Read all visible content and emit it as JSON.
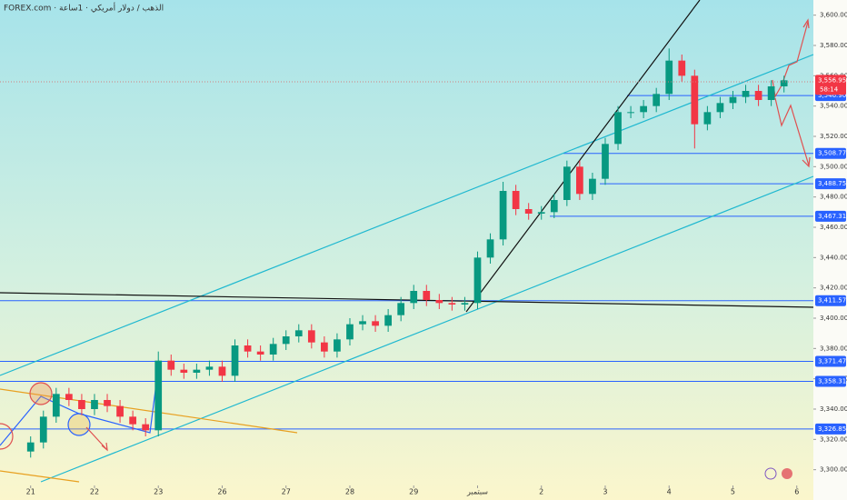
{
  "chart_data": {
    "type": "candlestick",
    "title": "FOREX.com · الذهب / دولار أمريكي · 1ساعة",
    "x": [
      0,
      0.2,
      0.4,
      0.6,
      0.8,
      1,
      1.2,
      1.4,
      1.6,
      1.8,
      2,
      2.2,
      2.4,
      2.6,
      2.8,
      3,
      3.2,
      3.4,
      3.6,
      3.8,
      4,
      4.2,
      4.4,
      4.6,
      4.8,
      5,
      5.2,
      5.4,
      5.6,
      5.8,
      6,
      6.2,
      6.4,
      6.6,
      6.8,
      7,
      7.2,
      7.4,
      7.6,
      7.8,
      8,
      8.2,
      8.4,
      8.6,
      8.8,
      9,
      9.2,
      9.4,
      9.6,
      9.8,
      10,
      10.2,
      10.4,
      10.6,
      10.8,
      11,
      11.2,
      11.4,
      11.6,
      11.8
    ],
    "open": [
      3312,
      3318,
      3335,
      3350,
      3346,
      3340,
      3346,
      3342,
      3335,
      3330,
      3326,
      3372,
      3366,
      3364,
      3366,
      3368,
      3362,
      3382,
      3378,
      3376,
      3383,
      3388,
      3392,
      3384,
      3378,
      3386,
      3396,
      3398,
      3395,
      3402,
      3410,
      3418,
      3412,
      3410,
      3409,
      3410,
      3440,
      3452,
      3484,
      3472,
      3469,
      3470,
      3478,
      3500,
      3482,
      3492,
      3515,
      3536,
      3536,
      3540,
      3548,
      3570,
      3560,
      3528,
      3536,
      3542,
      3546,
      3550,
      3544,
      3553
    ],
    "high": [
      3322,
      3339,
      3354,
      3354,
      3350,
      3350,
      3350,
      3346,
      3339,
      3334,
      3378,
      3376,
      3370,
      3370,
      3372,
      3372,
      3386,
      3386,
      3382,
      3387,
      3392,
      3396,
      3396,
      3388,
      3390,
      3400,
      3402,
      3402,
      3406,
      3414,
      3422,
      3422,
      3416,
      3414,
      3414,
      3444,
      3456,
      3490,
      3488,
      3476,
      3474,
      3482,
      3504,
      3504,
      3496,
      3519,
      3540,
      3540,
      3544,
      3552,
      3578,
      3574,
      3564,
      3540,
      3546,
      3550,
      3554,
      3554,
      3557,
      3560
    ],
    "low": [
      3308,
      3314,
      3331,
      3342,
      3336,
      3336,
      3338,
      3331,
      3326,
      3322,
      3322,
      3362,
      3360,
      3360,
      3362,
      3358,
      3358,
      3374,
      3372,
      3372,
      3379,
      3384,
      3380,
      3374,
      3374,
      3382,
      3392,
      3391,
      3391,
      3398,
      3406,
      3408,
      3406,
      3405,
      3405,
      3406,
      3436,
      3448,
      3468,
      3465,
      3465,
      3466,
      3474,
      3478,
      3478,
      3488,
      3511,
      3532,
      3532,
      3536,
      3544,
      3556,
      3512,
      3524,
      3532,
      3538,
      3542,
      3540,
      3540,
      3549
    ],
    "close": [
      3318,
      3335,
      3350,
      3346,
      3340,
      3346,
      3342,
      3335,
      3330,
      3326,
      3372,
      3366,
      3364,
      3366,
      3368,
      3362,
      3382,
      3378,
      3376,
      3383,
      3388,
      3392,
      3384,
      3378,
      3386,
      3396,
      3398,
      3395,
      3402,
      3410,
      3418,
      3412,
      3410,
      3409,
      3410,
      3440,
      3452,
      3484,
      3472,
      3469,
      3470,
      3478,
      3500,
      3482,
      3492,
      3515,
      3536,
      3536,
      3540,
      3548,
      3570,
      3560,
      3528,
      3536,
      3542,
      3546,
      3550,
      3544,
      3553,
      3557
    ],
    "up_color": "#089981",
    "down_color": "#f23645",
    "xlim": [
      -0.48,
      12.26
    ],
    "ylim": [
      3280,
      3610
    ],
    "xticks": [
      {
        "value": 0,
        "label": "21"
      },
      {
        "value": 1,
        "label": "22"
      },
      {
        "value": 2,
        "label": "23"
      },
      {
        "value": 3,
        "label": "26"
      },
      {
        "value": 4,
        "label": "27"
      },
      {
        "value": 5,
        "label": "28"
      },
      {
        "value": 6,
        "label": "29"
      },
      {
        "value": 7,
        "label": "سبتمبر"
      },
      {
        "value": 8,
        "label": "2"
      },
      {
        "value": 9,
        "label": "3"
      },
      {
        "value": 10,
        "label": "4"
      },
      {
        "value": 11,
        "label": "5"
      },
      {
        "value": 12,
        "label": "6"
      }
    ],
    "yticks": [
      {
        "value": 3600,
        "label": "3,600.00"
      },
      {
        "value": 3580,
        "label": "3,580.00"
      },
      {
        "value": 3560,
        "label": "3,560.00"
      },
      {
        "value": 3540,
        "label": "3,540.00"
      },
      {
        "value": 3520,
        "label": "3,520.00"
      },
      {
        "value": 3500,
        "label": "3,500.00"
      },
      {
        "value": 3480,
        "label": "3,480.00"
      },
      {
        "value": 3460,
        "label": "3,460.00"
      },
      {
        "value": 3440,
        "label": "3,440.00"
      },
      {
        "value": 3420,
        "label": "3,420.00"
      },
      {
        "value": 3400,
        "label": "3,400.00"
      },
      {
        "value": 3380,
        "label": "3,380.00"
      },
      {
        "value": 3360,
        "label": "3,360.00"
      },
      {
        "value": 3340,
        "label": "3,340.00"
      },
      {
        "value": 3320,
        "label": "3,320.00"
      },
      {
        "value": 3300,
        "label": "3,300.00"
      }
    ],
    "levels": [
      {
        "value": 3546.9,
        "label": "3,546.90"
      },
      {
        "value": 3508.77,
        "label": "3,508.77"
      },
      {
        "value": 3488.75,
        "label": "3,488.75"
      },
      {
        "value": 3467.31,
        "label": "3,467.31"
      },
      {
        "value": 3411.57,
        "label": "3,411.57"
      },
      {
        "value": 3371.47,
        "label": "3,371.47"
      },
      {
        "value": 3358.31,
        "label": "3,358.31"
      },
      {
        "value": 3326.85,
        "label": "3,326.85"
      }
    ],
    "level_color": "#2962ff",
    "last_price": {
      "value": 3556.95,
      "label": "3,556.95"
    },
    "countdown": "58:14"
  }
}
